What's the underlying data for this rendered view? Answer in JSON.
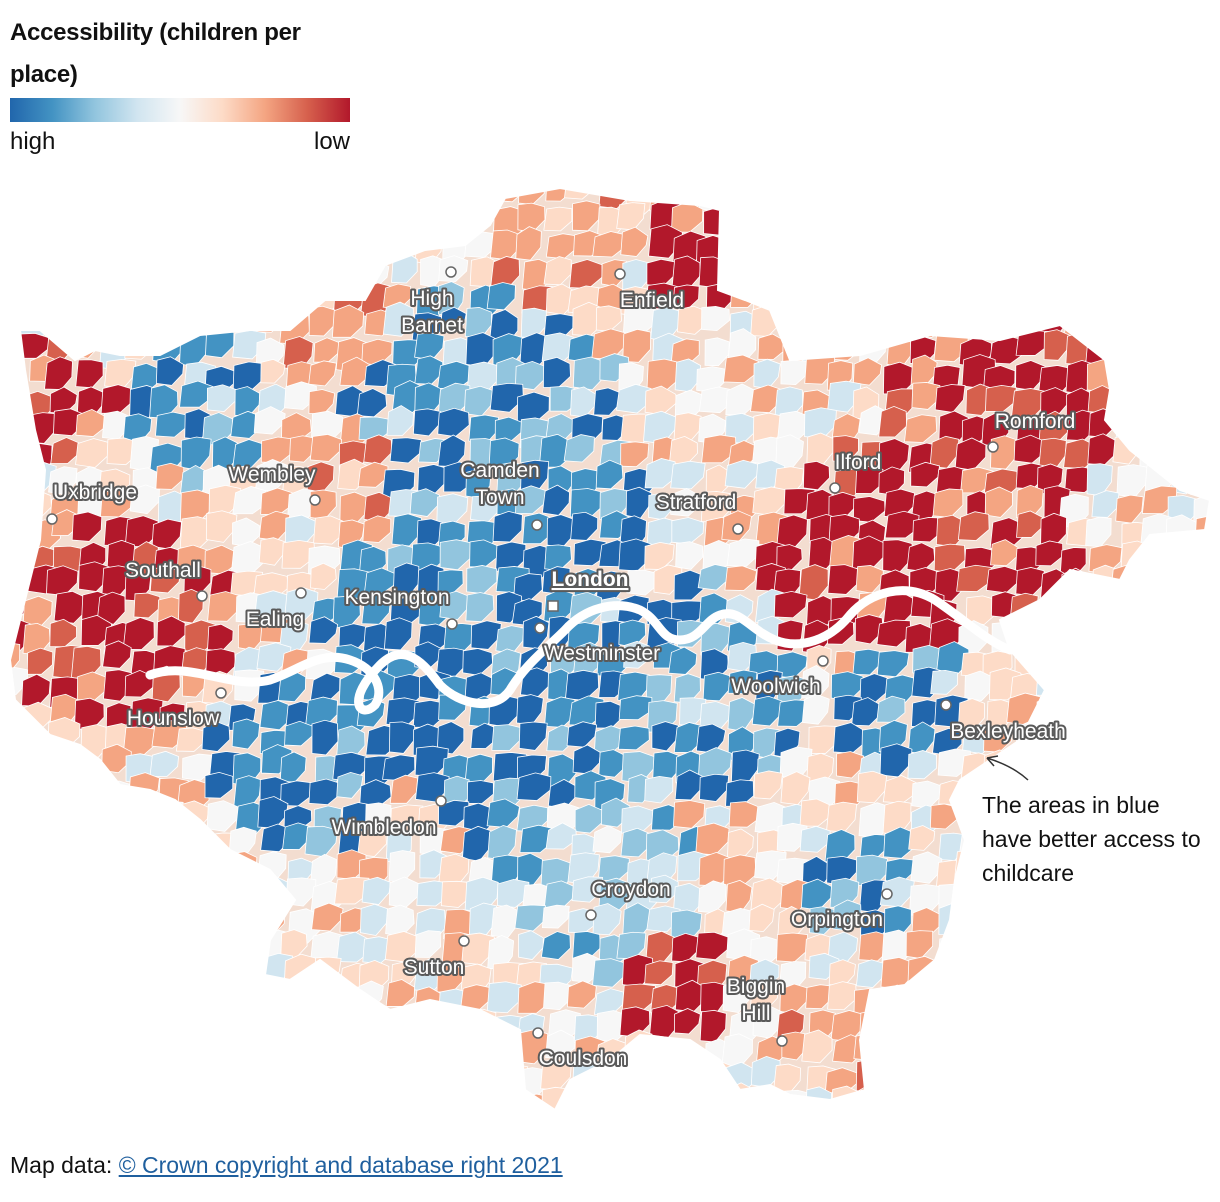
{
  "legend": {
    "title": "Accessibility (children per place)",
    "high_label": "high",
    "low_label": "low",
    "gradient": [
      "#2166ac",
      "#4393c3",
      "#92c5de",
      "#d1e5f0",
      "#f7f7f7",
      "#fddbc7",
      "#f4a582",
      "#d6604d",
      "#b2182b"
    ]
  },
  "colors": {
    "river": "#ffffff",
    "boundary": "#ffffff"
  },
  "places": [
    {
      "name": "High Barnet",
      "lines": [
        "High",
        "Barnet"
      ],
      "type": "town"
    },
    {
      "name": "Enfield",
      "lines": [
        "Enfield"
      ],
      "type": "town"
    },
    {
      "name": "Romford",
      "lines": [
        "Romford"
      ],
      "type": "town"
    },
    {
      "name": "Ilford",
      "lines": [
        "Ilford"
      ],
      "type": "town"
    },
    {
      "name": "Wembley",
      "lines": [
        "Wembley"
      ],
      "type": "town"
    },
    {
      "name": "Camden Town",
      "lines": [
        "Camden",
        "Town"
      ],
      "type": "town"
    },
    {
      "name": "Stratford",
      "lines": [
        "Stratford"
      ],
      "type": "town"
    },
    {
      "name": "Uxbridge",
      "lines": [
        "Uxbridge"
      ],
      "type": "town"
    },
    {
      "name": "Southall",
      "lines": [
        "Southall"
      ],
      "type": "town"
    },
    {
      "name": "London",
      "lines": [
        "London"
      ],
      "type": "capital"
    },
    {
      "name": "Kensington",
      "lines": [
        "Kensington"
      ],
      "type": "town"
    },
    {
      "name": "Ealing",
      "lines": [
        "Ealing"
      ],
      "type": "town"
    },
    {
      "name": "Westminster",
      "lines": [
        "Westminster"
      ],
      "type": "town"
    },
    {
      "name": "Woolwich",
      "lines": [
        "Woolwich"
      ],
      "type": "town"
    },
    {
      "name": "Bexleyheath",
      "lines": [
        "Bexleyheath"
      ],
      "type": "town"
    },
    {
      "name": "Hounslow",
      "lines": [
        "Hounslow"
      ],
      "type": "town"
    },
    {
      "name": "Wimbledon",
      "lines": [
        "Wimbledon"
      ],
      "type": "town"
    },
    {
      "name": "Croydon",
      "lines": [
        "Croydon"
      ],
      "type": "town"
    },
    {
      "name": "Orpington",
      "lines": [
        "Orpington"
      ],
      "type": "town"
    },
    {
      "name": "Sutton",
      "lines": [
        "Sutton"
      ],
      "type": "town"
    },
    {
      "name": "Biggin Hill",
      "lines": [
        "Biggin",
        "Hill"
      ],
      "type": "town"
    },
    {
      "name": "Coulsdon",
      "lines": [
        "Coulsdon"
      ],
      "type": "town"
    }
  ],
  "annotation": "The areas in blue have better access to childcare",
  "footer": {
    "prefix": "Map data: ",
    "link_text": "© Crown copyright and database right 2021"
  }
}
